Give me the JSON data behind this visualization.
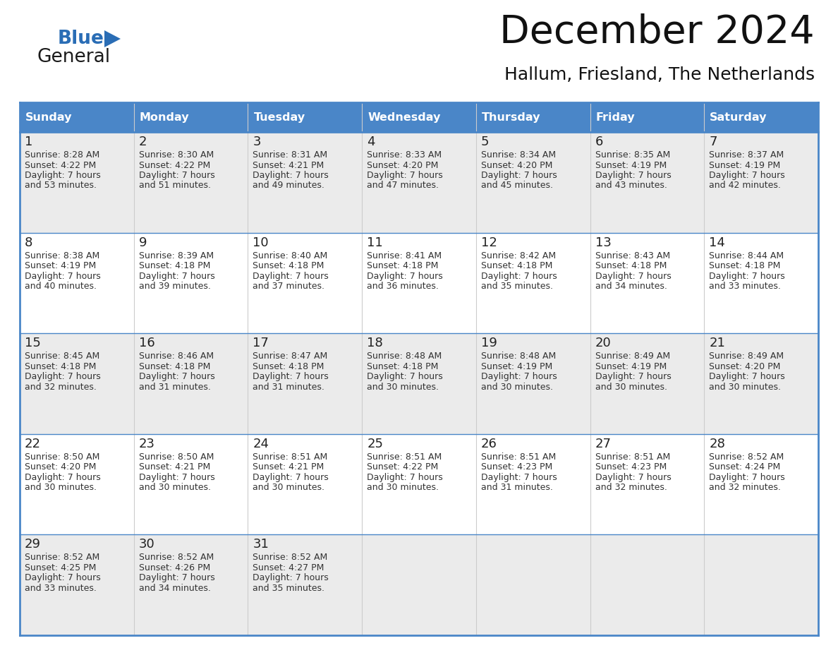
{
  "title": "December 2024",
  "subtitle": "Hallum, Friesland, The Netherlands",
  "days_of_week": [
    "Sunday",
    "Monday",
    "Tuesday",
    "Wednesday",
    "Thursday",
    "Friday",
    "Saturday"
  ],
  "header_bg": "#4a86c8",
  "header_text": "#ffffff",
  "row_bg_odd": "#ebebeb",
  "row_bg_even": "#ffffff",
  "cell_border_color": "#4a86c8",
  "day_num_color": "#222222",
  "text_color": "#333333",
  "title_color": "#111111",
  "logo_color1": "#1a1a1a",
  "logo_color2": "#2a6db5",
  "logo_tri_color": "#2a6db5",
  "calendar_data": [
    [
      {
        "day": "1",
        "sunrise": "8:28 AM",
        "sunset": "4:22 PM",
        "daylight_h": "7 hours",
        "daylight_m": "and 53 minutes."
      },
      {
        "day": "2",
        "sunrise": "8:30 AM",
        "sunset": "4:22 PM",
        "daylight_h": "7 hours",
        "daylight_m": "and 51 minutes."
      },
      {
        "day": "3",
        "sunrise": "8:31 AM",
        "sunset": "4:21 PM",
        "daylight_h": "7 hours",
        "daylight_m": "and 49 minutes."
      },
      {
        "day": "4",
        "sunrise": "8:33 AM",
        "sunset": "4:20 PM",
        "daylight_h": "7 hours",
        "daylight_m": "and 47 minutes."
      },
      {
        "day": "5",
        "sunrise": "8:34 AM",
        "sunset": "4:20 PM",
        "daylight_h": "7 hours",
        "daylight_m": "and 45 minutes."
      },
      {
        "day": "6",
        "sunrise": "8:35 AM",
        "sunset": "4:19 PM",
        "daylight_h": "7 hours",
        "daylight_m": "and 43 minutes."
      },
      {
        "day": "7",
        "sunrise": "8:37 AM",
        "sunset": "4:19 PM",
        "daylight_h": "7 hours",
        "daylight_m": "and 42 minutes."
      }
    ],
    [
      {
        "day": "8",
        "sunrise": "8:38 AM",
        "sunset": "4:19 PM",
        "daylight_h": "7 hours",
        "daylight_m": "and 40 minutes."
      },
      {
        "day": "9",
        "sunrise": "8:39 AM",
        "sunset": "4:18 PM",
        "daylight_h": "7 hours",
        "daylight_m": "and 39 minutes."
      },
      {
        "day": "10",
        "sunrise": "8:40 AM",
        "sunset": "4:18 PM",
        "daylight_h": "7 hours",
        "daylight_m": "and 37 minutes."
      },
      {
        "day": "11",
        "sunrise": "8:41 AM",
        "sunset": "4:18 PM",
        "daylight_h": "7 hours",
        "daylight_m": "and 36 minutes."
      },
      {
        "day": "12",
        "sunrise": "8:42 AM",
        "sunset": "4:18 PM",
        "daylight_h": "7 hours",
        "daylight_m": "and 35 minutes."
      },
      {
        "day": "13",
        "sunrise": "8:43 AM",
        "sunset": "4:18 PM",
        "daylight_h": "7 hours",
        "daylight_m": "and 34 minutes."
      },
      {
        "day": "14",
        "sunrise": "8:44 AM",
        "sunset": "4:18 PM",
        "daylight_h": "7 hours",
        "daylight_m": "and 33 minutes."
      }
    ],
    [
      {
        "day": "15",
        "sunrise": "8:45 AM",
        "sunset": "4:18 PM",
        "daylight_h": "7 hours",
        "daylight_m": "and 32 minutes."
      },
      {
        "day": "16",
        "sunrise": "8:46 AM",
        "sunset": "4:18 PM",
        "daylight_h": "7 hours",
        "daylight_m": "and 31 minutes."
      },
      {
        "day": "17",
        "sunrise": "8:47 AM",
        "sunset": "4:18 PM",
        "daylight_h": "7 hours",
        "daylight_m": "and 31 minutes."
      },
      {
        "day": "18",
        "sunrise": "8:48 AM",
        "sunset": "4:18 PM",
        "daylight_h": "7 hours",
        "daylight_m": "and 30 minutes."
      },
      {
        "day": "19",
        "sunrise": "8:48 AM",
        "sunset": "4:19 PM",
        "daylight_h": "7 hours",
        "daylight_m": "and 30 minutes."
      },
      {
        "day": "20",
        "sunrise": "8:49 AM",
        "sunset": "4:19 PM",
        "daylight_h": "7 hours",
        "daylight_m": "and 30 minutes."
      },
      {
        "day": "21",
        "sunrise": "8:49 AM",
        "sunset": "4:20 PM",
        "daylight_h": "7 hours",
        "daylight_m": "and 30 minutes."
      }
    ],
    [
      {
        "day": "22",
        "sunrise": "8:50 AM",
        "sunset": "4:20 PM",
        "daylight_h": "7 hours",
        "daylight_m": "and 30 minutes."
      },
      {
        "day": "23",
        "sunrise": "8:50 AM",
        "sunset": "4:21 PM",
        "daylight_h": "7 hours",
        "daylight_m": "and 30 minutes."
      },
      {
        "day": "24",
        "sunrise": "8:51 AM",
        "sunset": "4:21 PM",
        "daylight_h": "7 hours",
        "daylight_m": "and 30 minutes."
      },
      {
        "day": "25",
        "sunrise": "8:51 AM",
        "sunset": "4:22 PM",
        "daylight_h": "7 hours",
        "daylight_m": "and 30 minutes."
      },
      {
        "day": "26",
        "sunrise": "8:51 AM",
        "sunset": "4:23 PM",
        "daylight_h": "7 hours",
        "daylight_m": "and 31 minutes."
      },
      {
        "day": "27",
        "sunrise": "8:51 AM",
        "sunset": "4:23 PM",
        "daylight_h": "7 hours",
        "daylight_m": "and 32 minutes."
      },
      {
        "day": "28",
        "sunrise": "8:52 AM",
        "sunset": "4:24 PM",
        "daylight_h": "7 hours",
        "daylight_m": "and 32 minutes."
      }
    ],
    [
      {
        "day": "29",
        "sunrise": "8:52 AM",
        "sunset": "4:25 PM",
        "daylight_h": "7 hours",
        "daylight_m": "and 33 minutes."
      },
      {
        "day": "30",
        "sunrise": "8:52 AM",
        "sunset": "4:26 PM",
        "daylight_h": "7 hours",
        "daylight_m": "and 34 minutes."
      },
      {
        "day": "31",
        "sunrise": "8:52 AM",
        "sunset": "4:27 PM",
        "daylight_h": "7 hours",
        "daylight_m": "and 35 minutes."
      },
      null,
      null,
      null,
      null
    ]
  ]
}
